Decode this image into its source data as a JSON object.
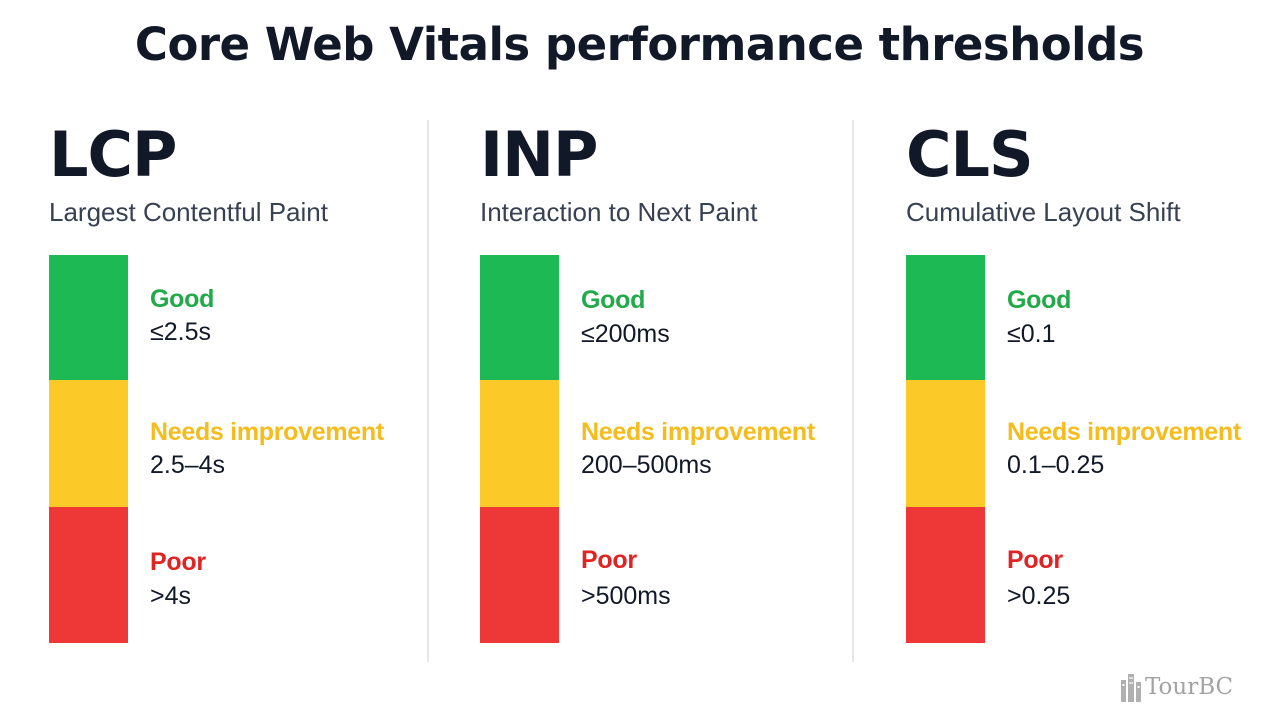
{
  "title": "Core Web Vitals performance thresholds",
  "colors": {
    "good": "#1db954",
    "needs_improvement": "#fbc928",
    "poor": "#ee3838",
    "good_text": "#22a94a",
    "needs_text": "#f4bc1c",
    "poor_text": "#e02424"
  },
  "metrics": [
    {
      "abbr": "LCP",
      "name": "Largest Contentful Paint",
      "good_label": "Good",
      "good_value": "≤2.5s",
      "needs_label": "Needs improvement",
      "needs_value": "2.5–4s",
      "poor_label": "Poor",
      "poor_value": ">4s"
    },
    {
      "abbr": "INP",
      "name": "Interaction to Next Paint",
      "good_label": "Good",
      "good_value": "≤200ms",
      "needs_label": "Needs improvement",
      "needs_value": "200–500ms",
      "poor_label": "Poor",
      "poor_value": ">500ms"
    },
    {
      "abbr": "CLS",
      "name": "Cumulative Layout Shift",
      "good_label": "Good",
      "good_value": "≤0.1",
      "needs_label": "Needs improvement",
      "needs_value": "0.1–0.25",
      "poor_label": "Poor",
      "poor_value": ">0.25"
    }
  ],
  "watermark": {
    "text": "TourBC",
    "icon": "buildings-icon"
  }
}
